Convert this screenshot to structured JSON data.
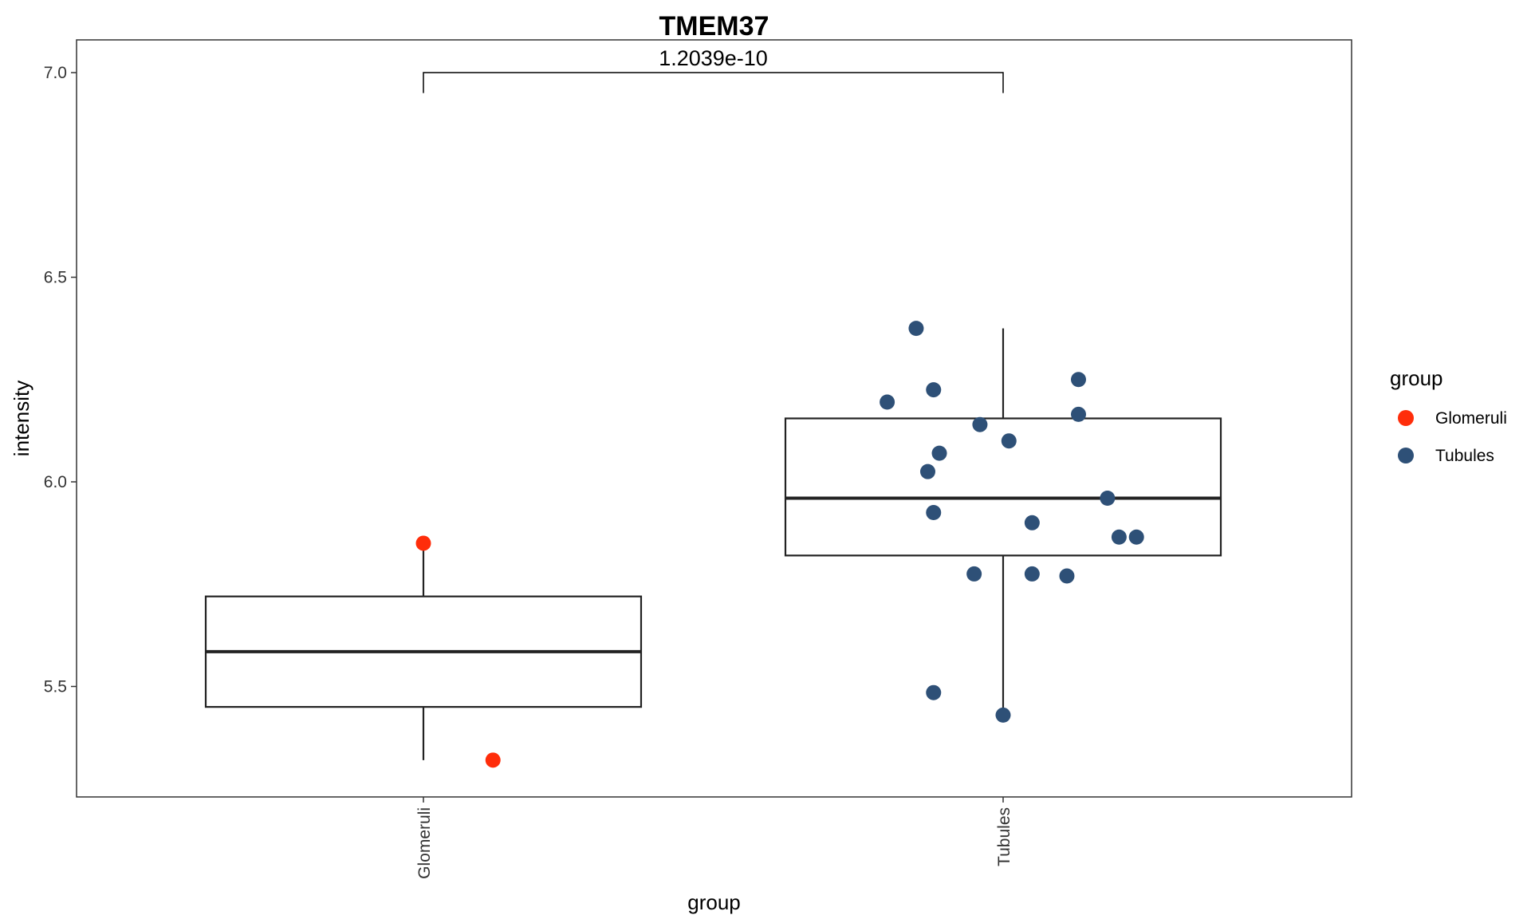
{
  "chart_data": {
    "type": "box",
    "title": "TMEM37",
    "xlabel": "group",
    "ylabel": "intensity",
    "categories": [
      "Glomeruli",
      "Tubules"
    ],
    "ylim": [
      5.23,
      7.08
    ],
    "yticks": [
      5.5,
      6.0,
      6.5,
      7.0
    ],
    "ytick_labels": [
      "5.5",
      "6.0",
      "6.5",
      "7.0"
    ],
    "grid": false,
    "legend": {
      "title": "group",
      "position": "right",
      "entries": [
        {
          "label": "Glomeruli",
          "color": "#FF2D0A"
        },
        {
          "label": "Tubules",
          "color": "#2E5077"
        }
      ]
    },
    "boxes": [
      {
        "category": "Glomeruli",
        "lower_whisker": 5.32,
        "q1": 5.45,
        "median": 5.585,
        "q3": 5.72,
        "upper_whisker": 5.85
      },
      {
        "category": "Tubules",
        "lower_whisker": 5.43,
        "q1": 5.82,
        "median": 5.96,
        "q3": 6.155,
        "upper_whisker": 6.375
      }
    ],
    "points": [
      {
        "group": "Glomeruli",
        "jitter": 0.0,
        "y": 5.85
      },
      {
        "group": "Glomeruli",
        "jitter": 0.12,
        "y": 5.32
      },
      {
        "group": "Tubules",
        "jitter": -0.15,
        "y": 6.375
      },
      {
        "group": "Tubules",
        "jitter": -0.12,
        "y": 6.225
      },
      {
        "group": "Tubules",
        "jitter": -0.2,
        "y": 6.195
      },
      {
        "group": "Tubules",
        "jitter": 0.13,
        "y": 6.25
      },
      {
        "group": "Tubules",
        "jitter": 0.13,
        "y": 6.165
      },
      {
        "group": "Tubules",
        "jitter": -0.04,
        "y": 6.14
      },
      {
        "group": "Tubules",
        "jitter": 0.01,
        "y": 6.1
      },
      {
        "group": "Tubules",
        "jitter": -0.11,
        "y": 6.07
      },
      {
        "group": "Tubules",
        "jitter": -0.13,
        "y": 6.025
      },
      {
        "group": "Tubules",
        "jitter": 0.18,
        "y": 5.96
      },
      {
        "group": "Tubules",
        "jitter": -0.12,
        "y": 5.925
      },
      {
        "group": "Tubules",
        "jitter": 0.05,
        "y": 5.9
      },
      {
        "group": "Tubules",
        "jitter": 0.2,
        "y": 5.865
      },
      {
        "group": "Tubules",
        "jitter": 0.23,
        "y": 5.865
      },
      {
        "group": "Tubules",
        "jitter": -0.05,
        "y": 5.775
      },
      {
        "group": "Tubules",
        "jitter": 0.05,
        "y": 5.775
      },
      {
        "group": "Tubules",
        "jitter": 0.11,
        "y": 5.77
      },
      {
        "group": "Tubules",
        "jitter": -0.12,
        "y": 5.485
      },
      {
        "group": "Tubules",
        "jitter": 0.0,
        "y": 5.43
      }
    ],
    "annotation": {
      "text": "1.2039e-10",
      "from": "Glomeruli",
      "to": "Tubules",
      "y": 7.0,
      "tip_y": 6.95
    }
  }
}
